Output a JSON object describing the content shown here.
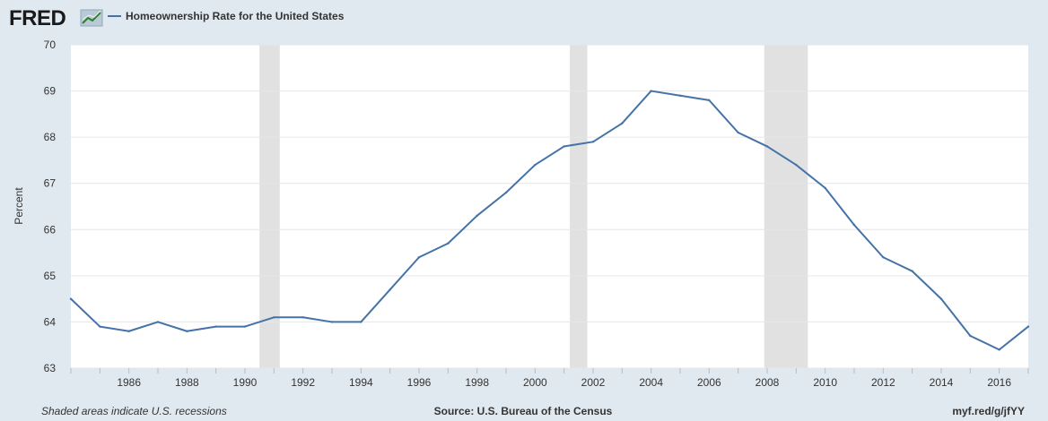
{
  "header": {
    "logo": "FRED",
    "legend_label": "Homeownership Rate for the United States"
  },
  "footer": {
    "note": "Shaded areas indicate U.S. recessions",
    "source": "Source: U.S. Bureau of the Census",
    "link": "myf.red/g/jfYY"
  },
  "colors": {
    "line": "#4572a7",
    "recession": "#e1e1e1",
    "background": "#e1e9f0",
    "plot_background": "#ffffff",
    "grid": "#e6e6e6"
  },
  "chart_data": {
    "type": "line",
    "title": "",
    "xlabel": "",
    "ylabel": "Percent",
    "xlim": [
      1984,
      2017
    ],
    "ylim": [
      63,
      70
    ],
    "yticks": [
      63,
      64,
      65,
      66,
      67,
      68,
      69,
      70
    ],
    "xticks": [
      1986,
      1988,
      1990,
      1992,
      1994,
      1996,
      1998,
      2000,
      2002,
      2004,
      2006,
      2008,
      2010,
      2012,
      2014,
      2016
    ],
    "grid": true,
    "legend": "top-left",
    "recessions": [
      [
        1990.5,
        1991.2
      ],
      [
        2001.2,
        2001.8
      ],
      [
        2007.9,
        2009.4
      ]
    ],
    "series": [
      {
        "name": "Homeownership Rate for the United States",
        "x": [
          1984,
          1985,
          1986,
          1987,
          1988,
          1989,
          1990,
          1991,
          1992,
          1993,
          1994,
          1995,
          1996,
          1997,
          1998,
          1999,
          2000,
          2001,
          2002,
          2003,
          2004,
          2005,
          2006,
          2007,
          2008,
          2009,
          2010,
          2011,
          2012,
          2013,
          2014,
          2015,
          2016,
          2017
        ],
        "values": [
          64.5,
          63.9,
          63.8,
          64.0,
          63.8,
          63.9,
          63.9,
          64.1,
          64.1,
          64.0,
          64.0,
          64.7,
          65.4,
          65.7,
          66.3,
          66.8,
          67.4,
          67.8,
          67.9,
          68.3,
          69.0,
          68.9,
          68.8,
          68.1,
          67.8,
          67.4,
          66.9,
          66.1,
          65.4,
          65.1,
          64.5,
          63.7,
          63.4,
          63.9
        ]
      }
    ]
  }
}
